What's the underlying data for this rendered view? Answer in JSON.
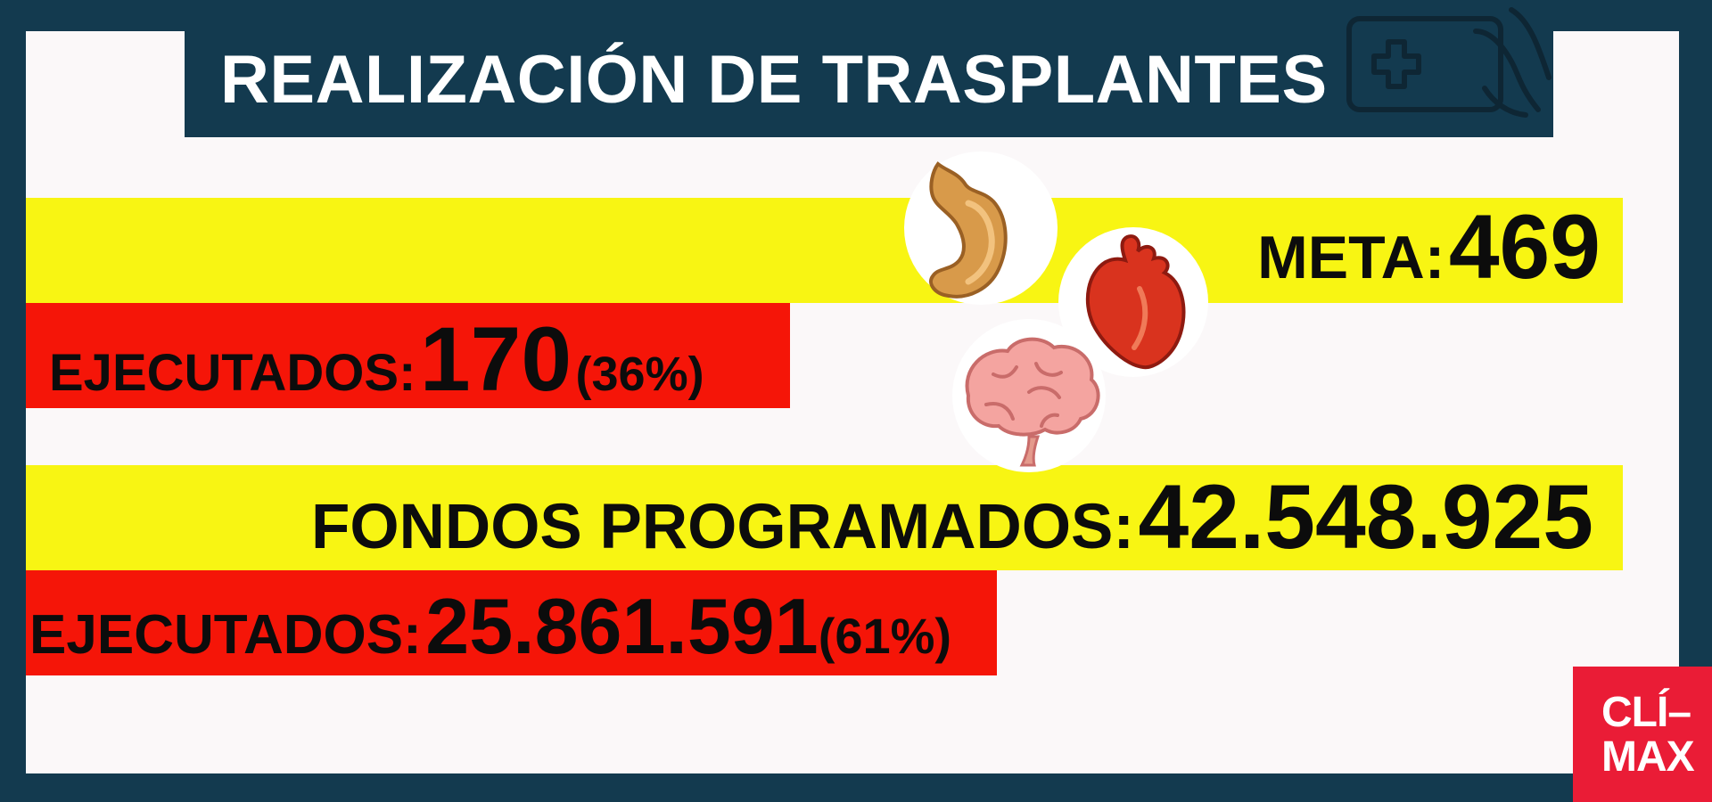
{
  "title": "REALIZACIÓN DE TRASPLANTES",
  "chart_data": {
    "type": "bar",
    "title": "REALIZACIÓN DE TRASPLANTES",
    "groups": [
      {
        "name": "trasplantes",
        "target_label": "META:",
        "target_value": 469,
        "target_display": "469",
        "executed_label": "EJECUTADOS:",
        "executed_value": 170,
        "executed_display": "170",
        "executed_percent": 36,
        "executed_percent_display": "(36%)"
      },
      {
        "name": "fondos",
        "target_label": "FONDOS PROGRAMADOS:",
        "target_value": 42548925,
        "target_display": "42.548.925",
        "executed_label": "EJECUTADOS:",
        "executed_value": 25861591,
        "executed_display": "25.861.591",
        "executed_percent": 61,
        "executed_percent_display": "(61%)"
      }
    ]
  },
  "colors": {
    "background": "#133a4f",
    "target_bar": "#f8f513",
    "executed_bar": "#f51508",
    "logo_bg": "#ea1c36"
  },
  "icons": [
    "tablet-medical-icon",
    "stomach-icon",
    "heart-icon",
    "brain-icon"
  ],
  "logo": {
    "line1": "CLÍ–",
    "line2": "MAX"
  }
}
